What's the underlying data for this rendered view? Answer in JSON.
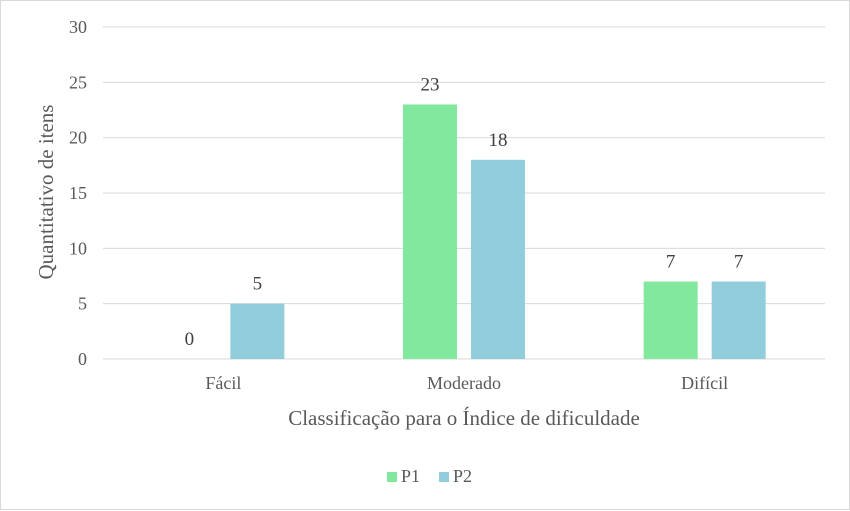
{
  "chart_data": {
    "type": "bar",
    "categories": [
      "Fácil",
      "Moderado",
      "Difícil"
    ],
    "series": [
      {
        "name": "P1",
        "values": [
          0,
          23,
          7
        ],
        "color": "#82E89E"
      },
      {
        "name": "P2",
        "values": [
          5,
          18,
          7
        ],
        "color": "#92CDDC"
      }
    ],
    "xlabel": "Classificação para o Índice de dificuldade",
    "ylabel": "Quantitativo de itens",
    "ylim": [
      0,
      30
    ],
    "yticks": [
      0,
      5,
      10,
      15,
      20,
      25,
      30
    ],
    "grid": true,
    "data_labels": true,
    "legend_position": "bottom"
  }
}
